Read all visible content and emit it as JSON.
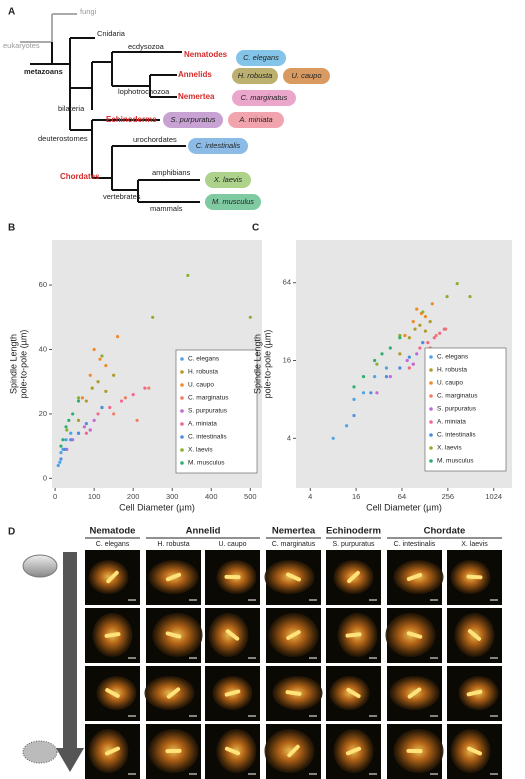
{
  "tree": {
    "panel": "A",
    "fungi": "fungi",
    "eukaryotes": "eukaryotes",
    "cnidaria": "Cnidaria",
    "metazoans": "metazoans",
    "ecdysozoa": "ecdysozoa",
    "nematodes": "Nematodes",
    "annelids": "Annelids",
    "lophotrochozoa": "lophotrochozoa",
    "nemertea": "Nemertea",
    "bilateria": "bilateria",
    "echinoderms": "Echinoderms",
    "deuterostomes": "deuterostomes",
    "urochordates": "urochordates",
    "chordates": "Chordates",
    "amphibians": "amphibians",
    "vertebrates": "vertebrates",
    "mammals": "mammals",
    "species": [
      {
        "name": "C. elegans",
        "color": "#84c4e8"
      },
      {
        "name": "H. robusta",
        "color": "#bcb070"
      },
      {
        "name": "U. caupo",
        "color": "#d99a62"
      },
      {
        "name": "C. marginatus",
        "color": "#eba6cc"
      },
      {
        "name": "S. purpuratus",
        "color": "#c9a2d4"
      },
      {
        "name": "A. miniata",
        "color": "#f2a4ae"
      },
      {
        "name": "C. intestinalis",
        "color": "#8cbce6"
      },
      {
        "name": "X. laevis",
        "color": "#acd28c"
      },
      {
        "name": "M. musculus",
        "color": "#80caa2"
      }
    ]
  },
  "chart_data": [
    {
      "type": "scatter",
      "panel": "B",
      "x_label": "Cell Diameter (µm)",
      "y_label": [
        "Spindle Length",
        "pole-to-pole (µm)"
      ],
      "xlim": [
        -8,
        530
      ],
      "ylim": [
        -3,
        74
      ],
      "xticks": [
        0,
        100,
        200,
        300,
        400,
        500
      ],
      "yticks": [
        0,
        20,
        40,
        60
      ],
      "log": false,
      "grid": false,
      "legend": "lower right",
      "series": [
        {
          "name": "C. elegans",
          "color": "#4fa3e6",
          "x": [
            8,
            12,
            15,
            20,
            28,
            40
          ],
          "values": [
            4,
            5,
            8,
            9,
            12,
            14
          ]
        },
        {
          "name": "H. robusta",
          "color": "#b09a2a",
          "x": [
            60,
            80,
            95,
            110,
            130,
            150
          ],
          "values": [
            18,
            24,
            28,
            30,
            27,
            32
          ]
        },
        {
          "name": "U. caupo",
          "color": "#f08a2a",
          "x": [
            70,
            90,
            100,
            115,
            130,
            160
          ],
          "values": [
            25,
            32,
            40,
            37,
            35,
            44
          ]
        },
        {
          "name": "C. marginatus",
          "color": "#ef7f66",
          "x": [
            90,
            120,
            150,
            180,
            210,
            240
          ],
          "values": [
            15,
            22,
            20,
            25,
            18,
            28
          ]
        },
        {
          "name": "S. purpuratus",
          "color": "#bf6ad8",
          "x": [
            30,
            45,
            60,
            75,
            90,
            100
          ],
          "values": [
            9,
            12,
            14,
            16,
            15,
            18
          ]
        },
        {
          "name": "A. miniata",
          "color": "#f2688a",
          "x": [
            80,
            110,
            140,
            170,
            200,
            230
          ],
          "values": [
            14,
            20,
            22,
            24,
            26,
            28
          ]
        },
        {
          "name": "C. intestinalis",
          "color": "#4a8fe0",
          "x": [
            15,
            25,
            40,
            60,
            80,
            120
          ],
          "values": [
            6,
            9,
            12,
            14,
            17,
            22
          ]
        },
        {
          "name": "X. laevis",
          "color": "#8bb030",
          "x": [
            30,
            60,
            120,
            250,
            340,
            500
          ],
          "values": [
            15,
            25,
            38,
            50,
            63,
            50
          ]
        },
        {
          "name": "M. musculus",
          "color": "#2fb070",
          "x": [
            15,
            20,
            28,
            35,
            45,
            60
          ],
          "values": [
            10,
            12,
            16,
            18,
            20,
            24
          ]
        }
      ]
    },
    {
      "type": "scatter",
      "panel": "C",
      "x_label": "Cell Diameter (µm)",
      "y_label": [
        "Spindle Length",
        "pole-to-pole (µm)"
      ],
      "xlim": [
        2.6,
        1780
      ],
      "ylim": [
        1.65,
        137
      ],
      "xticks": [
        4,
        16,
        64,
        256,
        1024
      ],
      "yticks": [
        4,
        16,
        64
      ],
      "log": true,
      "grid": false,
      "legend": "lower right",
      "series": [
        {
          "name": "C. elegans",
          "color": "#4fa3e6",
          "x": [
            8,
            12,
            15,
            20,
            28,
            40
          ],
          "values": [
            4,
            5,
            8,
            9,
            12,
            14
          ]
        },
        {
          "name": "H. robusta",
          "color": "#b09a2a",
          "x": [
            60,
            80,
            95,
            110,
            130,
            150
          ],
          "values": [
            18,
            24,
            28,
            30,
            27,
            32
          ]
        },
        {
          "name": "U. caupo",
          "color": "#f08a2a",
          "x": [
            70,
            90,
            100,
            115,
            130,
            160
          ],
          "values": [
            25,
            32,
            40,
            37,
            35,
            44
          ]
        },
        {
          "name": "C. marginatus",
          "color": "#ef7f66",
          "x": [
            90,
            120,
            150,
            180,
            210,
            240
          ],
          "values": [
            15,
            22,
            20,
            25,
            18,
            28
          ]
        },
        {
          "name": "S. purpuratus",
          "color": "#bf6ad8",
          "x": [
            30,
            45,
            60,
            75,
            90,
            100
          ],
          "values": [
            9,
            12,
            14,
            16,
            15,
            18
          ]
        },
        {
          "name": "A. miniata",
          "color": "#f2688a",
          "x": [
            80,
            110,
            140,
            170,
            200,
            230
          ],
          "values": [
            14,
            20,
            22,
            24,
            26,
            28
          ]
        },
        {
          "name": "C. intestinalis",
          "color": "#4a8fe0",
          "x": [
            15,
            25,
            40,
            60,
            80,
            120
          ],
          "values": [
            6,
            9,
            12,
            14,
            17,
            22
          ]
        },
        {
          "name": "X. laevis",
          "color": "#8bb030",
          "x": [
            30,
            60,
            120,
            250,
            340,
            500
          ],
          "values": [
            15,
            25,
            38,
            50,
            63,
            50
          ]
        },
        {
          "name": "M. musculus",
          "color": "#2fb070",
          "x": [
            15,
            20,
            28,
            35,
            45,
            60
          ],
          "values": [
            10,
            12,
            16,
            18,
            20,
            24
          ]
        }
      ]
    }
  ],
  "panel_d": {
    "panel": "D",
    "groups": [
      {
        "name": "Nematode",
        "species": [
          "C. elegans"
        ]
      },
      {
        "name": "Annelid",
        "species": [
          "H. robusta",
          "U. caupo"
        ]
      },
      {
        "name": "Nemertea",
        "species": [
          "C. marginatus"
        ]
      },
      {
        "name": "Echinoderm",
        "species": [
          "S. purpuratus"
        ]
      },
      {
        "name": "Chordate",
        "species": [
          "C. intestinalis",
          "X. laevis"
        ]
      }
    ]
  }
}
